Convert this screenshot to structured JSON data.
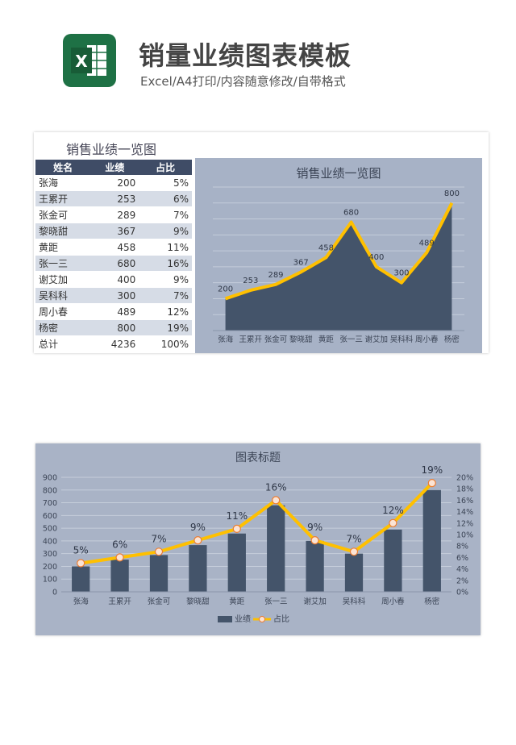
{
  "header": {
    "title": "销量业绩图表模板",
    "subtitle": "Excel/A4打印/内容随意修改/自带格式",
    "logo_letter": "X",
    "logo_color": "#1e7145"
  },
  "table": {
    "title": "销售业绩一览图",
    "headers": [
      "姓名",
      "业绩",
      "占比"
    ],
    "rows": [
      [
        "张海",
        "200",
        "5%"
      ],
      [
        "王累开",
        "253",
        "6%"
      ],
      [
        "张金可",
        "289",
        "7%"
      ],
      [
        "黎晓甜",
        "367",
        "9%"
      ],
      [
        "黄距",
        "458",
        "11%"
      ],
      [
        "张一三",
        "680",
        "16%"
      ],
      [
        "谢艾加",
        "400",
        "9%"
      ],
      [
        "吴科科",
        "300",
        "7%"
      ],
      [
        "周小春",
        "489",
        "12%"
      ],
      [
        "杨密",
        "800",
        "19%"
      ],
      [
        "总计",
        "4236",
        "100%"
      ]
    ]
  },
  "chart_data": [
    {
      "type": "area",
      "title": "销售业绩一览图",
      "categories": [
        "张海",
        "王累开",
        "张金可",
        "黎晓甜",
        "黄距",
        "张一三",
        "谢艾加",
        "吴科科",
        "周小春",
        "杨密"
      ],
      "series": [
        {
          "values": [
            200,
            253,
            289,
            367,
            458,
            680,
            400,
            300,
            489,
            800
          ]
        }
      ],
      "ylim": [
        0,
        900
      ],
      "grid": true,
      "colors": {
        "area": "#44546a",
        "line": "#ffc000",
        "background": "#a7b2c6"
      }
    },
    {
      "type": "bar",
      "title": "图表标题",
      "categories": [
        "张海",
        "王累开",
        "张金可",
        "黎晓甜",
        "黄距",
        "张一三",
        "谢艾加",
        "吴科科",
        "周小春",
        "杨密"
      ],
      "series": [
        {
          "name": "业绩",
          "type": "bar",
          "axis": "left",
          "values": [
            200,
            253,
            289,
            367,
            458,
            680,
            400,
            300,
            489,
            800
          ]
        },
        {
          "name": "占比",
          "type": "line",
          "axis": "right",
          "values": [
            5,
            6,
            7,
            9,
            11,
            16,
            9,
            7,
            12,
            19
          ],
          "labels": [
            "5%",
            "6%",
            "7%",
            "9%",
            "11%",
            "16%",
            "9%",
            "7%",
            "12%",
            "19%"
          ]
        }
      ],
      "ylim": [
        0,
        900
      ],
      "yticks": [
        0,
        100,
        200,
        300,
        400,
        500,
        600,
        700,
        800,
        900
      ],
      "y2lim": [
        0,
        20
      ],
      "y2ticks": [
        "0%",
        "2%",
        "4%",
        "6%",
        "8%",
        "10%",
        "12%",
        "14%",
        "16%",
        "18%",
        "20%"
      ],
      "legend": "bottom",
      "grid": true,
      "colors": {
        "bar": "#44546a",
        "line": "#ffc000",
        "marker_fill": "#fbe4d5",
        "marker_edge": "#ed7d31",
        "background": "#a9b3c6"
      }
    }
  ]
}
